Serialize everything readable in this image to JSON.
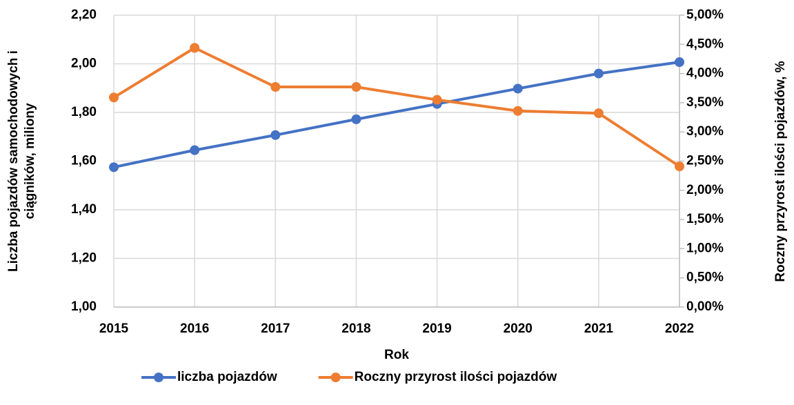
{
  "chart_data": {
    "type": "line",
    "categories": [
      "2015",
      "2016",
      "2017",
      "2018",
      "2019",
      "2020",
      "2021",
      "2022"
    ],
    "series": [
      {
        "name": "liczba pojazdów",
        "color": "#4472c4",
        "axis": "y",
        "values": [
          1.575,
          1.645,
          1.707,
          1.772,
          1.835,
          1.898,
          1.96,
          2.007
        ]
      },
      {
        "name": "Roczny przyrost ilości pojazdów",
        "color": "#ed7d31",
        "axis": "y2",
        "values": [
          3.59,
          4.44,
          3.77,
          3.77,
          3.55,
          3.36,
          3.32,
          2.41
        ]
      }
    ],
    "x_label": "Rok",
    "y_label": [
      "Liczba pojazdów samochodowych i",
      "ciągników, miliony"
    ],
    "y2_label": "Roczny przyrost ilości pojazdów, %",
    "ylim": [
      1.0,
      2.2
    ],
    "yticks": [
      {
        "value": 1.0,
        "label": "1,00"
      },
      {
        "value": 1.2,
        "label": "1,20"
      },
      {
        "value": 1.4,
        "label": "1,40"
      },
      {
        "value": 1.6,
        "label": "1,60"
      },
      {
        "value": 1.8,
        "label": "1,80"
      },
      {
        "value": 2.0,
        "label": "2,00"
      },
      {
        "value": 2.2,
        "label": "2,20"
      }
    ],
    "y2lim": [
      0,
      5
    ],
    "y2ticks": [
      {
        "value": 0,
        "label": "0,00%"
      },
      {
        "value": 0.5,
        "label": "0,50%"
      },
      {
        "value": 1,
        "label": "1,00%"
      },
      {
        "value": 1.5,
        "label": "1,50%"
      },
      {
        "value": 2,
        "label": "2,00%"
      },
      {
        "value": 2.5,
        "label": "2,50%"
      },
      {
        "value": 3,
        "label": "3,00%"
      },
      {
        "value": 3.5,
        "label": "3,50%"
      },
      {
        "value": 4,
        "label": "4,00%"
      },
      {
        "value": 4.5,
        "label": "4,50%"
      },
      {
        "value": 5,
        "label": "5,00%"
      }
    ],
    "grid": true,
    "legend": "bottom"
  }
}
